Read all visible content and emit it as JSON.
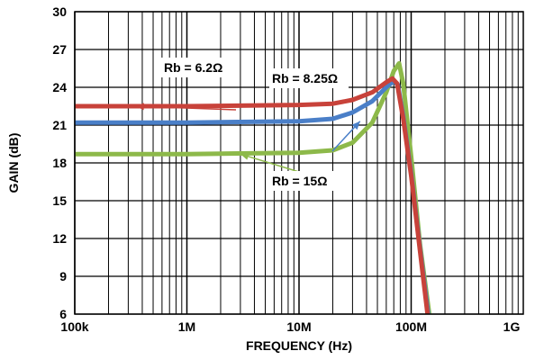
{
  "chart_data": {
    "type": "line",
    "xlabel": "FREQUENCY (Hz)",
    "ylabel": "GAIN (dB)",
    "x_scale": "log",
    "xlim": [
      100000,
      1000000000
    ],
    "ylim": [
      6,
      30
    ],
    "grid": true,
    "x_ticks": [
      {
        "value": 100000,
        "label": "100k"
      },
      {
        "value": 1000000,
        "label": "1M"
      },
      {
        "value": 10000000,
        "label": "10M"
      },
      {
        "value": 100000000,
        "label": "100M"
      },
      {
        "value": 1000000000,
        "label": "1G"
      }
    ],
    "y_ticks": [
      6,
      9,
      12,
      15,
      18,
      21,
      24,
      27,
      30
    ],
    "series": [
      {
        "name": "Rb = 6.2Ω",
        "color": "#c8423a",
        "points": [
          [
            100000,
            22.5
          ],
          [
            1000000,
            22.5
          ],
          [
            10000000,
            22.6
          ],
          [
            20000000,
            22.7
          ],
          [
            30000000,
            23.0
          ],
          [
            45000000,
            23.6
          ],
          [
            60000000,
            24.4
          ],
          [
            68000000,
            24.7
          ],
          [
            75000000,
            24.3
          ],
          [
            85000000,
            21.5
          ],
          [
            100000000,
            17.0
          ],
          [
            120000000,
            11.0
          ],
          [
            140000000,
            6.0
          ]
        ]
      },
      {
        "name": "Rb = 8.25Ω",
        "color": "#4a7fc8",
        "points": [
          [
            100000,
            21.2
          ],
          [
            1000000,
            21.2
          ],
          [
            10000000,
            21.3
          ],
          [
            20000000,
            21.5
          ],
          [
            30000000,
            22.0
          ],
          [
            45000000,
            22.9
          ],
          [
            60000000,
            24.0
          ],
          [
            70000000,
            24.5
          ],
          [
            76000000,
            24.2
          ],
          [
            85000000,
            21.7
          ],
          [
            100000000,
            17.2
          ],
          [
            120000000,
            11.2
          ],
          [
            142000000,
            6.0
          ]
        ]
      },
      {
        "name": "Rb = 15Ω",
        "color": "#8db94a",
        "points": [
          [
            100000,
            18.7
          ],
          [
            1000000,
            18.7
          ],
          [
            10000000,
            18.8
          ],
          [
            20000000,
            19.0
          ],
          [
            30000000,
            19.6
          ],
          [
            45000000,
            21.2
          ],
          [
            60000000,
            23.6
          ],
          [
            70000000,
            25.3
          ],
          [
            78000000,
            25.9
          ],
          [
            85000000,
            24.3
          ],
          [
            100000000,
            18.5
          ],
          [
            120000000,
            11.5
          ],
          [
            145000000,
            6.0
          ]
        ]
      }
    ],
    "annotations": [
      {
        "text": "Rb = 6.2Ω",
        "series": 0,
        "target": [
          350000,
          22.5
        ]
      },
      {
        "text": "Rb = 8.25Ω",
        "series": 1,
        "target": [
          35000000,
          21.3
        ]
      },
      {
        "text": "Rb = 15Ω",
        "series": 2,
        "target": [
          3000000,
          18.7
        ]
      }
    ]
  }
}
